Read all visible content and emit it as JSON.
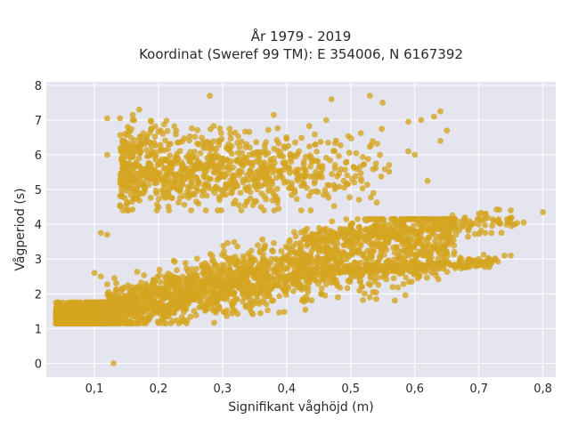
{
  "chart_data": {
    "type": "scatter",
    "title_line1": "År 1979 - 2019",
    "title_line2": "Koordinat (Sweref 99 TM): E 354006, N 6167392",
    "xlabel": "Signifikant våghöjd (m)",
    "ylabel": "Vågperiod (s)",
    "xlim": [
      0.025,
      0.82
    ],
    "ylim": [
      -0.4,
      8.1
    ],
    "x_ticks": [
      0.1,
      0.2,
      0.3,
      0.4,
      0.5,
      0.6,
      0.7,
      0.8
    ],
    "x_tick_labels": [
      "0,1",
      "0,2",
      "0,3",
      "0,4",
      "0,5",
      "0,6",
      "0,7",
      "0,8"
    ],
    "y_ticks": [
      0,
      1,
      2,
      3,
      4,
      5,
      6,
      7,
      8
    ],
    "y_tick_labels": [
      "0",
      "1",
      "2",
      "3",
      "4",
      "5",
      "6",
      "7",
      "8"
    ],
    "grid": true,
    "background": "#e5e5ef",
    "marker_color": "#d4a520",
    "clusters": [
      {
        "name": "",
        "x_range": [
          0.04,
          0.8
        ],
        "y_intercept": 1.25,
        "slope": 4.2,
        "spread": 0.55,
        "count": 2600
      },
      {
        "name": "",
        "x_range": [
          0.13,
          0.56
        ],
        "y_center": 5.6,
        "spread": 0.55,
        "count": 900
      }
    ],
    "sample_points": [
      {
        "x": 0.13,
        "y": 0.0
      },
      {
        "x": 0.04,
        "y": 1.4
      },
      {
        "x": 0.06,
        "y": 1.55
      },
      {
        "x": 0.09,
        "y": 1.4
      },
      {
        "x": 0.11,
        "y": 2.5
      },
      {
        "x": 0.1,
        "y": 2.6
      },
      {
        "x": 0.11,
        "y": 3.75
      },
      {
        "x": 0.12,
        "y": 3.7
      },
      {
        "x": 0.12,
        "y": 7.05
      },
      {
        "x": 0.14,
        "y": 7.05
      },
      {
        "x": 0.16,
        "y": 7.15
      },
      {
        "x": 0.17,
        "y": 7.3
      },
      {
        "x": 0.28,
        "y": 7.7
      },
      {
        "x": 0.38,
        "y": 7.15
      },
      {
        "x": 0.47,
        "y": 7.6
      },
      {
        "x": 0.53,
        "y": 7.7
      },
      {
        "x": 0.55,
        "y": 7.5
      },
      {
        "x": 0.59,
        "y": 6.95
      },
      {
        "x": 0.61,
        "y": 7.0
      },
      {
        "x": 0.63,
        "y": 7.1
      },
      {
        "x": 0.64,
        "y": 7.25
      },
      {
        "x": 0.59,
        "y": 6.1
      },
      {
        "x": 0.6,
        "y": 6.0
      },
      {
        "x": 0.62,
        "y": 5.25
      },
      {
        "x": 0.64,
        "y": 6.4
      },
      {
        "x": 0.65,
        "y": 6.7
      },
      {
        "x": 0.8,
        "y": 4.35
      },
      {
        "x": 0.77,
        "y": 4.05
      },
      {
        "x": 0.75,
        "y": 4.4
      },
      {
        "x": 0.74,
        "y": 3.1
      },
      {
        "x": 0.75,
        "y": 3.1
      },
      {
        "x": 0.73,
        "y": 4.1
      },
      {
        "x": 0.7,
        "y": 4.3
      },
      {
        "x": 0.68,
        "y": 4.05
      },
      {
        "x": 0.7,
        "y": 3.0
      },
      {
        "x": 0.71,
        "y": 3.75
      },
      {
        "x": 0.67,
        "y": 2.95
      },
      {
        "x": 0.6,
        "y": 2.8
      },
      {
        "x": 0.53,
        "y": 1.9
      },
      {
        "x": 0.54,
        "y": 1.85
      },
      {
        "x": 0.46,
        "y": 1.95
      },
      {
        "x": 0.48,
        "y": 1.9
      },
      {
        "x": 0.14,
        "y": 4.55
      },
      {
        "x": 0.2,
        "y": 4.5
      },
      {
        "x": 0.15,
        "y": 5.1
      },
      {
        "x": 0.12,
        "y": 6.0
      }
    ]
  }
}
